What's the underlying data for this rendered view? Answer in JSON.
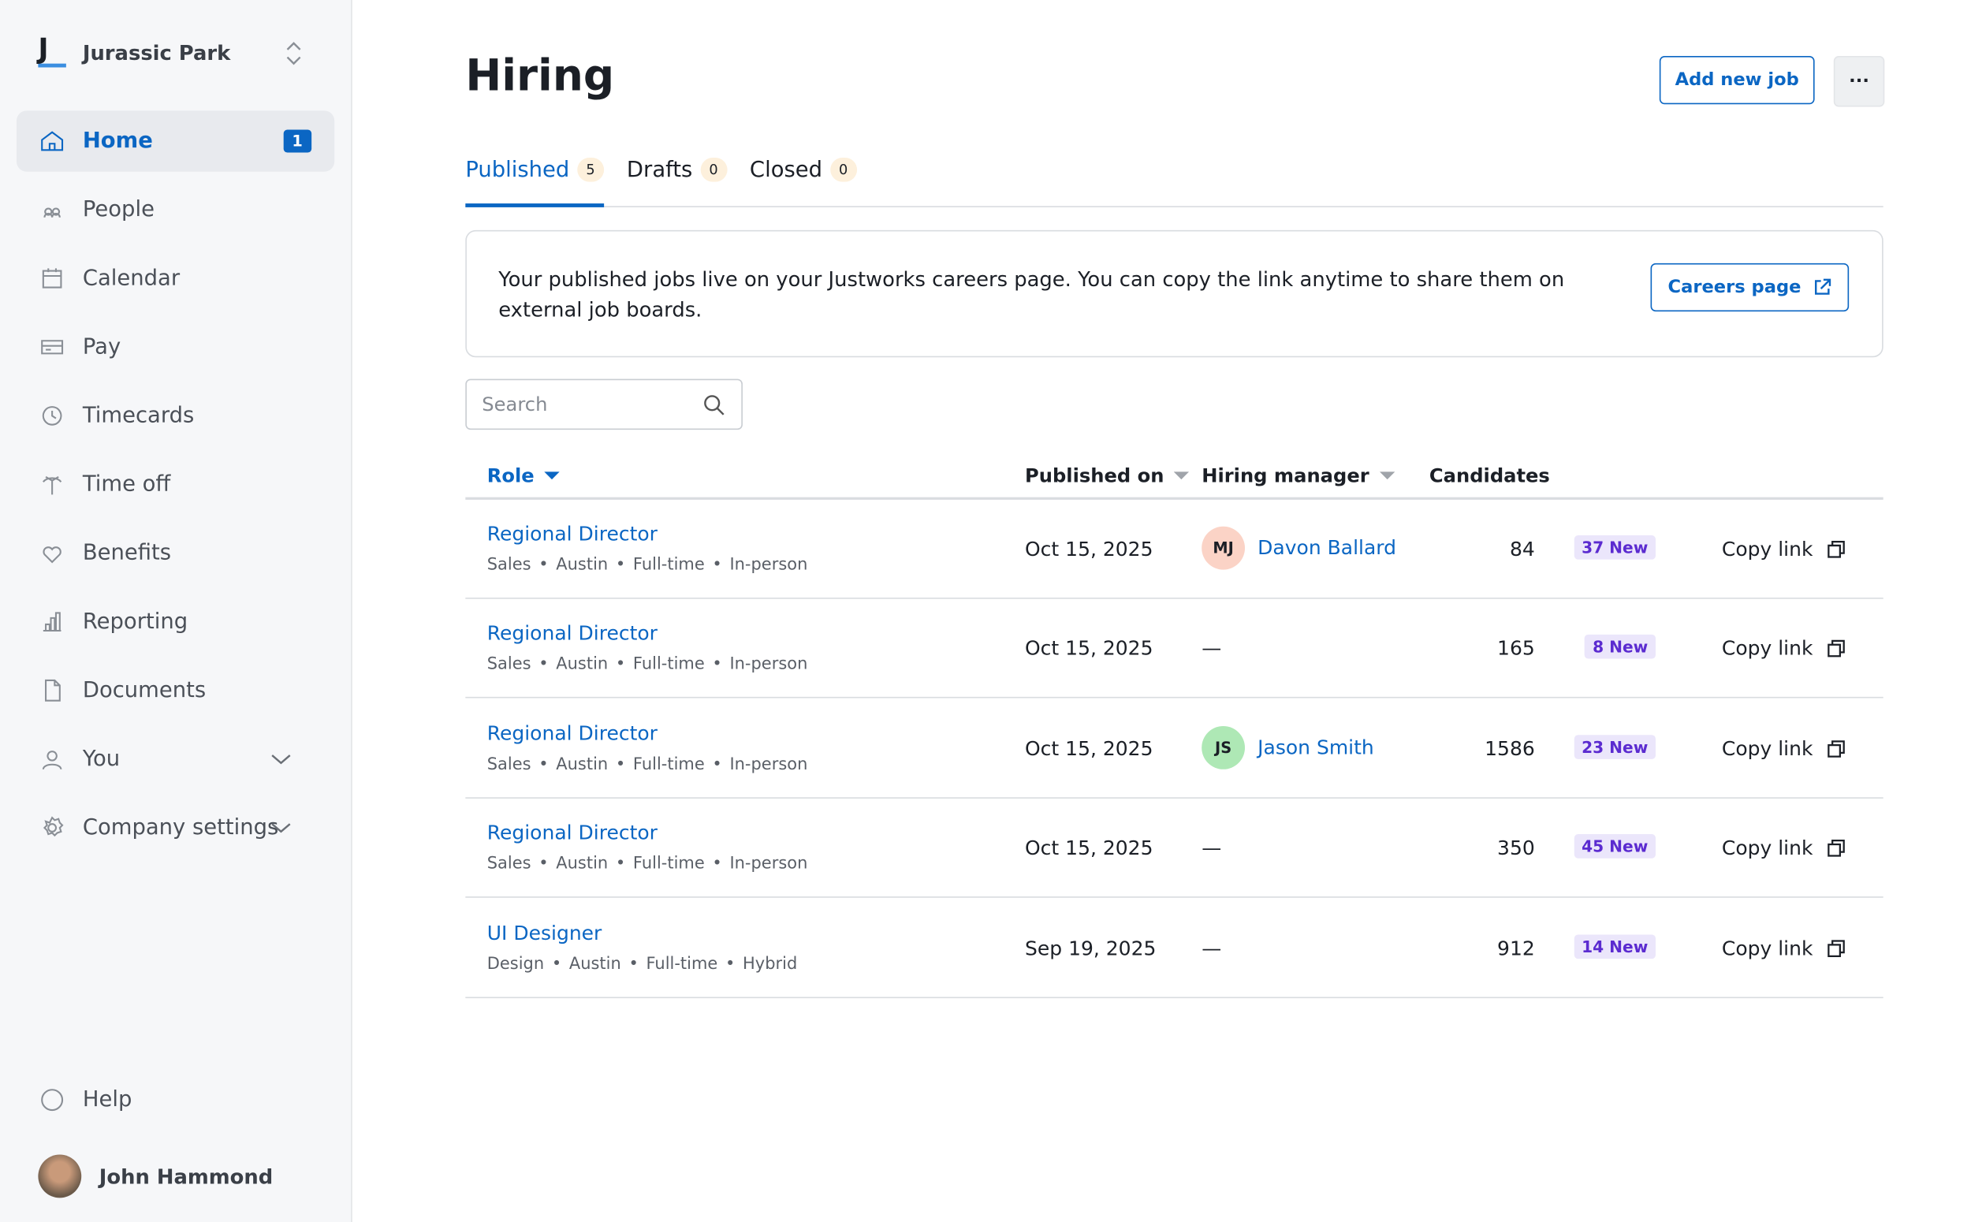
{
  "sidebar": {
    "logo": "J",
    "company": "Jurassic Park",
    "nav": [
      {
        "label": "Home",
        "badge": "1"
      },
      {
        "label": "People"
      },
      {
        "label": "Calendar"
      },
      {
        "label": "Pay"
      },
      {
        "label": "Timecards"
      },
      {
        "label": "Time off"
      },
      {
        "label": "Benefits"
      },
      {
        "label": "Reporting"
      },
      {
        "label": "Documents"
      },
      {
        "label": "You"
      },
      {
        "label": "Company settings"
      }
    ],
    "help": "Help",
    "user": "John Hammond"
  },
  "header": {
    "title": "Hiring",
    "add_button": "Add new job",
    "more_button": "···"
  },
  "tabs": [
    {
      "label": "Published",
      "count": "5"
    },
    {
      "label": "Drafts",
      "count": "0"
    },
    {
      "label": "Closed",
      "count": "0"
    }
  ],
  "banner": {
    "text": "Your published jobs live on your Justworks careers page. You can copy the link anytime to share them on external job boards.",
    "button": "Careers page"
  },
  "search": {
    "placeholder": "Search"
  },
  "table": {
    "columns": [
      "Role",
      "Published on",
      "Hiring manager",
      "Candidates"
    ],
    "rows": [
      {
        "role": "Regional Director",
        "details": [
          "Sales",
          "Austin",
          "Full-time",
          "In-person"
        ],
        "published": "Oct 15, 2025",
        "manager": {
          "initials": "MJ",
          "name": "Davon Ballard"
        },
        "candidates": 84,
        "new": "37 New",
        "action": "Copy link"
      },
      {
        "role": "Regional Director",
        "details": [
          "Sales",
          "Austin",
          "Full-time",
          "In-person"
        ],
        "published": "Oct 15, 2025",
        "manager": "—",
        "candidates": 165,
        "new": "8 New",
        "action": "Copy link"
      },
      {
        "role": "Regional Director",
        "details": [
          "Sales",
          "Austin",
          "Full-time",
          "In-person"
        ],
        "published": "Oct 15, 2025",
        "manager": {
          "initials": "JS",
          "name": "Jason Smith"
        },
        "candidates": 1586,
        "new": "23 New",
        "action": "Copy link"
      },
      {
        "role": "Regional Director",
        "details": [
          "Sales",
          "Austin",
          "Full-time",
          "In-person"
        ],
        "published": "Oct 15, 2025",
        "manager": "—",
        "candidates": 350,
        "new": "45 New",
        "action": "Copy link"
      },
      {
        "role": "UI Designer",
        "details": [
          "Design",
          "Austin",
          "Full-time",
          "Hybrid"
        ],
        "published": "Sep 19, 2025",
        "manager": "—",
        "candidates": 912,
        "new": "14 New",
        "action": "Copy link"
      }
    ]
  }
}
